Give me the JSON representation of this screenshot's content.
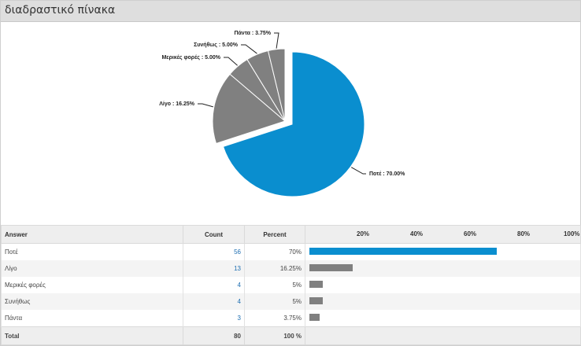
{
  "panel": {
    "title": "διαδραστικό πίνακα"
  },
  "chart_data": {
    "type": "pie",
    "slices": [
      {
        "label": "Ποτέ : 70.00%",
        "answer": "Ποτέ",
        "value": 70.0,
        "color": "#0a8ecf"
      },
      {
        "label": "Λίγο : 16.25%",
        "answer": "Λίγο",
        "value": 16.25,
        "color": "#808080"
      },
      {
        "label": "Μερικές φορές : 5.00%",
        "answer": "Μερικές φορές",
        "value": 5.0,
        "color": "#808080"
      },
      {
        "label": "Συνήθως : 5.00%",
        "answer": "Συνήθως",
        "value": 5.0,
        "color": "#808080"
      },
      {
        "label": "Πάντα : 3.75%",
        "answer": "Πάντα",
        "value": 3.75,
        "color": "#808080"
      }
    ]
  },
  "table": {
    "headers": {
      "answer": "Answer",
      "count": "Count",
      "percent": "Percent"
    },
    "bar_ticks": [
      "20%",
      "40%",
      "60%",
      "80%",
      "100%"
    ],
    "bar_tick_values": [
      20,
      40,
      60,
      80,
      100
    ],
    "rows": [
      {
        "answer": "Ποτέ",
        "count": "56",
        "percent": "70%",
        "value": 70,
        "color": "#0a8ecf"
      },
      {
        "answer": "Λίγο",
        "count": "13",
        "percent": "16.25%",
        "value": 16.25,
        "color": "#808080"
      },
      {
        "answer": "Μερικές φορές",
        "count": "4",
        "percent": "5%",
        "value": 5,
        "color": "#808080"
      },
      {
        "answer": "Συνήθως",
        "count": "4",
        "percent": "5%",
        "value": 5,
        "color": "#808080"
      },
      {
        "answer": "Πάντα",
        "count": "3",
        "percent": "3.75%",
        "value": 3.75,
        "color": "#808080"
      }
    ],
    "total": {
      "label": "Total",
      "count": "80",
      "percent": "100 %"
    }
  }
}
